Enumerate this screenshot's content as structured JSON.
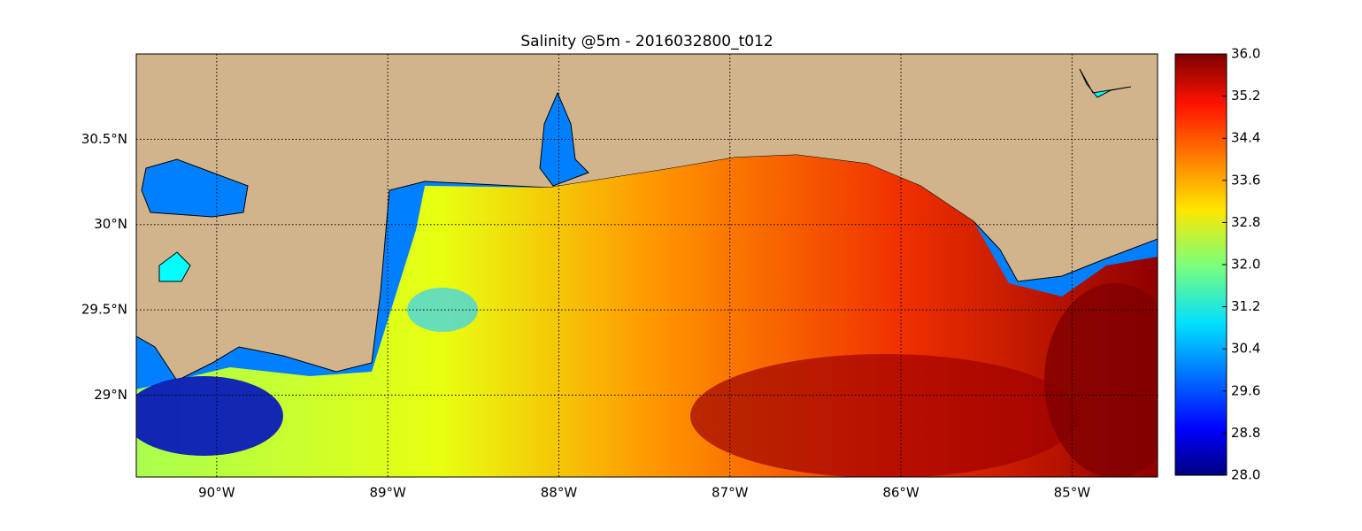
{
  "chart_data": {
    "type": "map",
    "title": "Salinity @5m - 2016032800_t012",
    "xlim": [
      -90.47,
      -84.5
    ],
    "ylim": [
      28.52,
      31.0
    ],
    "xticks": [
      {
        "value": -90,
        "label": "90°W"
      },
      {
        "value": -89,
        "label": "89°W"
      },
      {
        "value": -88,
        "label": "88°W"
      },
      {
        "value": -87,
        "label": "87°W"
      },
      {
        "value": -86,
        "label": "86°W"
      },
      {
        "value": -85,
        "label": "85°W"
      }
    ],
    "yticks": [
      {
        "value": 29,
        "label": "29°N"
      },
      {
        "value": 29.5,
        "label": "29.5°N"
      },
      {
        "value": 30,
        "label": "30°N"
      },
      {
        "value": 30.5,
        "label": "30.5°N"
      }
    ],
    "grid": true,
    "colorbar": {
      "lim": [
        28,
        36
      ],
      "ticks": [
        {
          "value": 28,
          "label": "28.0"
        },
        {
          "value": 28.8,
          "label": "28.8"
        },
        {
          "value": 29.6,
          "label": "29.6"
        },
        {
          "value": 30.4,
          "label": "30.4"
        },
        {
          "value": 31.2,
          "label": "31.2"
        },
        {
          "value": 32,
          "label": "32.0"
        },
        {
          "value": 32.8,
          "label": "32.8"
        },
        {
          "value": 33.6,
          "label": "33.6"
        },
        {
          "value": 34.4,
          "label": "34.4"
        },
        {
          "value": 35.2,
          "label": "35.2"
        },
        {
          "value": 36,
          "label": "36.0"
        }
      ]
    }
  }
}
